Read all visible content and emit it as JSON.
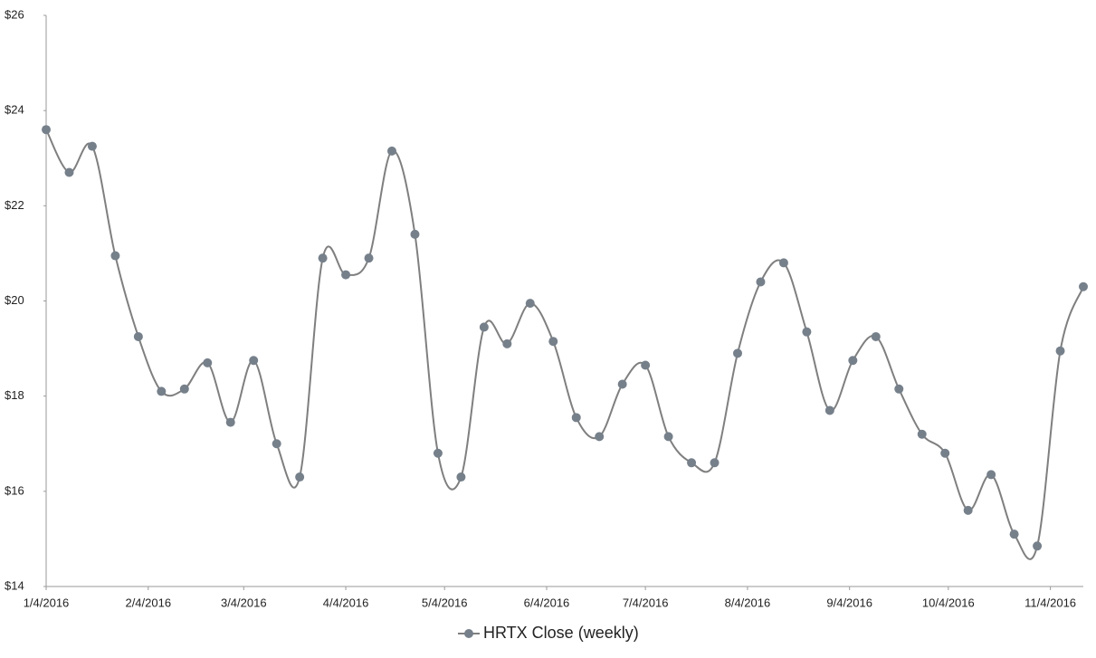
{
  "chart_data": {
    "type": "line",
    "x": [
      "1/4/2016",
      "1/11/2016",
      "1/18/2016",
      "1/25/2016",
      "2/1/2016",
      "2/8/2016",
      "2/15/2016",
      "2/22/2016",
      "2/29/2016",
      "3/7/2016",
      "3/14/2016",
      "3/21/2016",
      "3/28/2016",
      "4/4/2016",
      "4/11/2016",
      "4/18/2016",
      "4/25/2016",
      "5/2/2016",
      "5/9/2016",
      "5/16/2016",
      "5/23/2016",
      "5/30/2016",
      "6/6/2016",
      "6/13/2016",
      "6/20/2016",
      "6/27/2016",
      "7/4/2016",
      "7/11/2016",
      "7/18/2016",
      "7/25/2016",
      "8/1/2016",
      "8/8/2016",
      "8/15/2016",
      "8/22/2016",
      "8/29/2016",
      "9/5/2016",
      "9/12/2016",
      "9/19/2016",
      "9/26/2016",
      "10/3/2016",
      "10/10/2016",
      "10/17/2016",
      "10/24/2016",
      "10/31/2016",
      "11/7/2016",
      "11/14/2016"
    ],
    "series": [
      {
        "name": "HRTX Close (weekly)",
        "color": "#7f7f7f",
        "marker_color": "#76808b",
        "values": [
          23.6,
          22.7,
          23.25,
          20.95,
          19.25,
          18.1,
          18.15,
          18.7,
          17.45,
          18.75,
          17.0,
          16.3,
          20.9,
          20.55,
          20.9,
          23.15,
          21.4,
          16.8,
          16.3,
          19.45,
          19.1,
          19.95,
          19.15,
          17.55,
          17.15,
          18.25,
          18.65,
          17.15,
          16.6,
          16.6,
          18.9,
          20.4,
          20.8,
          19.35,
          17.7,
          18.75,
          19.25,
          18.15,
          17.2,
          16.8,
          15.6,
          16.35,
          15.1,
          14.85,
          18.95,
          20.3
        ]
      }
    ],
    "xlim": [
      "1/4/2016",
      "11/14/2016"
    ],
    "xticks": [
      "1/4/2016",
      "2/4/2016",
      "3/4/2016",
      "4/4/2016",
      "5/4/2016",
      "6/4/2016",
      "7/4/2016",
      "8/4/2016",
      "9/4/2016",
      "10/4/2016",
      "11/4/2016"
    ],
    "ylim": [
      14,
      26
    ],
    "yticks": [
      {
        "value": 14,
        "label": "$14"
      },
      {
        "value": 16,
        "label": "$16"
      },
      {
        "value": 18,
        "label": "$18"
      },
      {
        "value": 20,
        "label": "$20"
      },
      {
        "value": 22,
        "label": "$22"
      },
      {
        "value": 24,
        "label": "$24"
      },
      {
        "value": 26,
        "label": "$26"
      }
    ],
    "grid": false,
    "legend": "bottom",
    "smooth": true
  }
}
